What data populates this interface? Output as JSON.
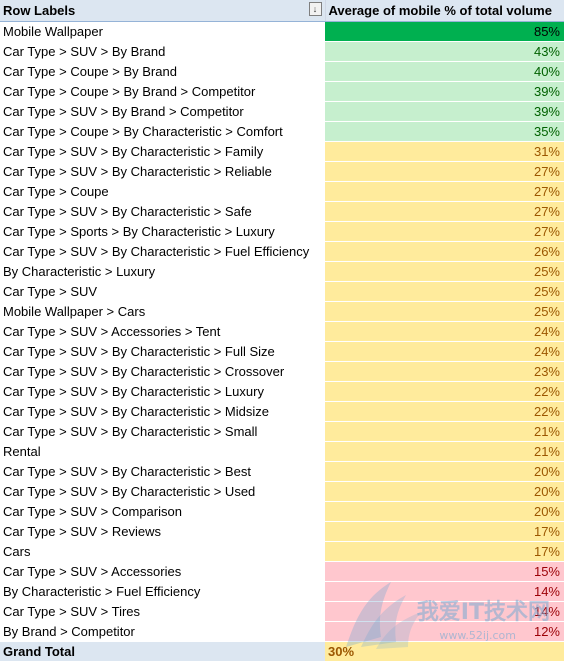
{
  "header": {
    "row_labels": "Row Labels",
    "value_header": "Average of mobile % of total volume",
    "filter_icon": "sort-filter-icon"
  },
  "colors": {
    "dark_green": "#00b050",
    "light_green": "#c6efce",
    "yellow": "#ffeb9c",
    "red": "#ffc7ce",
    "header_bg": "#dce6f1"
  },
  "rows": [
    {
      "label": "Mobile Wallpaper",
      "value": "85%",
      "tier": "dark-green"
    },
    {
      "label": "Car Type > SUV > By Brand",
      "value": "43%",
      "tier": "light-green"
    },
    {
      "label": "Car Type > Coupe > By Brand",
      "value": "40%",
      "tier": "light-green"
    },
    {
      "label": "Car Type > Coupe > By Brand > Competitor",
      "value": "39%",
      "tier": "light-green"
    },
    {
      "label": "Car Type > SUV > By Brand > Competitor",
      "value": "39%",
      "tier": "light-green"
    },
    {
      "label": "Car Type > Coupe > By Characteristic > Comfort",
      "value": "35%",
      "tier": "light-green"
    },
    {
      "label": "Car Type > SUV > By Characteristic > Family",
      "value": "31%",
      "tier": "yellow"
    },
    {
      "label": "Car Type > SUV > By Characteristic > Reliable",
      "value": "27%",
      "tier": "yellow"
    },
    {
      "label": "Car Type > Coupe",
      "value": "27%",
      "tier": "yellow"
    },
    {
      "label": "Car Type > SUV > By Characteristic > Safe",
      "value": "27%",
      "tier": "yellow"
    },
    {
      "label": "Car Type > Sports > By Characteristic > Luxury",
      "value": "27%",
      "tier": "yellow"
    },
    {
      "label": "Car Type > SUV > By Characteristic > Fuel Efficiency",
      "value": "26%",
      "tier": "yellow"
    },
    {
      "label": "By Characteristic > Luxury",
      "value": "25%",
      "tier": "yellow"
    },
    {
      "label": "Car Type > SUV",
      "value": "25%",
      "tier": "yellow"
    },
    {
      "label": "Mobile Wallpaper > Cars",
      "value": "25%",
      "tier": "yellow"
    },
    {
      "label": "Car Type > SUV > Accessories > Tent",
      "value": "24%",
      "tier": "yellow"
    },
    {
      "label": "Car Type > SUV > By Characteristic > Full Size",
      "value": "24%",
      "tier": "yellow"
    },
    {
      "label": "Car Type > SUV > By Characteristic > Crossover",
      "value": "23%",
      "tier": "yellow"
    },
    {
      "label": "Car Type > SUV > By Characteristic > Luxury",
      "value": "22%",
      "tier": "yellow"
    },
    {
      "label": "Car Type > SUV > By Characteristic > Midsize",
      "value": "22%",
      "tier": "yellow"
    },
    {
      "label": "Car Type > SUV > By Characteristic > Small",
      "value": "21%",
      "tier": "yellow"
    },
    {
      "label": "Rental",
      "value": "21%",
      "tier": "yellow"
    },
    {
      "label": "Car Type > SUV > By Characteristic > Best",
      "value": "20%",
      "tier": "yellow"
    },
    {
      "label": "Car Type > SUV > By Characteristic > Used",
      "value": "20%",
      "tier": "yellow"
    },
    {
      "label": "Car Type > SUV > Comparison",
      "value": "20%",
      "tier": "yellow"
    },
    {
      "label": "Car Type > SUV > Reviews",
      "value": "17%",
      "tier": "yellow"
    },
    {
      "label": "Cars",
      "value": "17%",
      "tier": "yellow"
    },
    {
      "label": "Car Type > SUV > Accessories",
      "value": "15%",
      "tier": "red"
    },
    {
      "label": "By Characteristic > Fuel Efficiency",
      "value": "14%",
      "tier": "red"
    },
    {
      "label": "Car Type > SUV > Tires",
      "value": "14%",
      "tier": "red"
    },
    {
      "label": "By Brand > Competitor",
      "value": "12%",
      "tier": "red"
    }
  ],
  "footer": {
    "label": "Grand Total",
    "value": "30%"
  },
  "watermark": {
    "text": "我爱IT技术网",
    "url": "www.52ij.com",
    "logo_icon": "wing-logo-icon"
  }
}
